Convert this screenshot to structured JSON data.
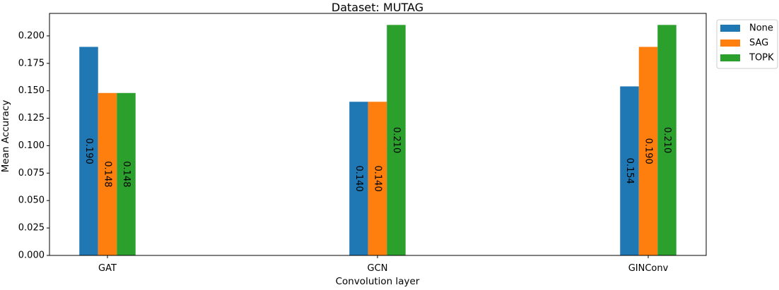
{
  "chart_data": {
    "type": "bar",
    "title": "Dataset: MUTAG",
    "xlabel": "Convolution layer",
    "ylabel": "Mean Accuracy",
    "categories": [
      "GAT",
      "GCN",
      "GINConv"
    ],
    "series": [
      {
        "name": "None",
        "color": "#1f77b4",
        "values": [
          0.19,
          0.14,
          0.154
        ],
        "labels": [
          "0.190",
          "0.140",
          "0.154"
        ]
      },
      {
        "name": "SAG",
        "color": "#ff7f0e",
        "values": [
          0.148,
          0.14,
          0.19
        ],
        "labels": [
          "0.148",
          "0.140",
          "0.190"
        ]
      },
      {
        "name": "TOPK",
        "color": "#2ca02c",
        "values": [
          0.148,
          0.21,
          0.21
        ],
        "labels": [
          "0.148",
          "0.210",
          "0.210"
        ]
      }
    ],
    "ylim": [
      0,
      0.2205
    ],
    "yticks": [
      {
        "value": 0.0,
        "label": "0.000"
      },
      {
        "value": 0.025,
        "label": "0.025"
      },
      {
        "value": 0.05,
        "label": "0.050"
      },
      {
        "value": 0.075,
        "label": "0.075"
      },
      {
        "value": 0.1,
        "label": "0.100"
      },
      {
        "value": 0.125,
        "label": "0.125"
      },
      {
        "value": 0.15,
        "label": "0.150"
      },
      {
        "value": 0.175,
        "label": "0.175"
      },
      {
        "value": 0.2,
        "label": "0.200"
      }
    ],
    "grid": false,
    "legend_position": "outside-top-right"
  }
}
